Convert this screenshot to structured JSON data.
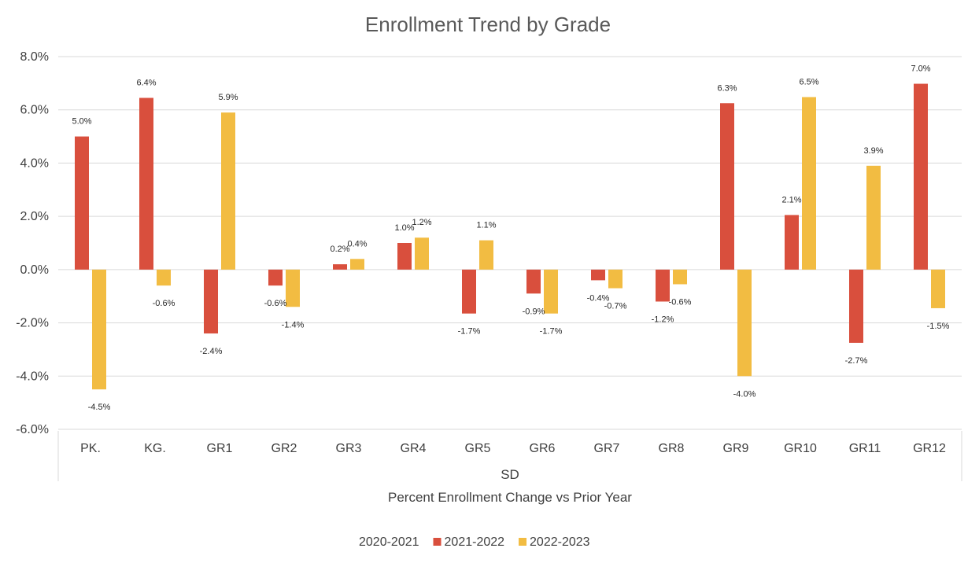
{
  "chart_data": {
    "type": "bar",
    "title": "Enrollment Trend by Grade",
    "categories": [
      "PK.",
      "KG.",
      "GR1",
      "GR2",
      "GR3",
      "GR4",
      "GR5",
      "GR6",
      "GR7",
      "GR8",
      "GR9",
      "GR10",
      "GR11",
      "GR12"
    ],
    "group_label": "SD",
    "xlabel": "Percent Enrollment Change vs Prior Year",
    "ylabel": "",
    "ylim": [
      -6.0,
      8.0
    ],
    "yticks": [
      "8.0%",
      "6.0%",
      "4.0%",
      "2.0%",
      "0.0%",
      "-2.0%",
      "-4.0%",
      "-6.0%"
    ],
    "grid": true,
    "legend_position": "bottom",
    "series": [
      {
        "name": "2020-2021",
        "color": "#4472C4",
        "values": [
          null,
          null,
          null,
          null,
          null,
          null,
          null,
          null,
          null,
          null,
          null,
          null,
          null,
          null
        ],
        "labels": []
      },
      {
        "name": "2021-2022",
        "color": "#D94F3D",
        "values": [
          5.0,
          6.45,
          -2.4,
          -0.6,
          0.2,
          1.0,
          -1.65,
          -0.9,
          -0.4,
          -1.2,
          6.25,
          2.05,
          -2.75,
          6.98
        ],
        "labels": [
          "5.0%",
          "6.4%",
          "-2.4%",
          "-0.6%",
          "0.2%",
          "1.0%",
          "-1.7%",
          "-0.9%",
          "-0.4%",
          "-1.2%",
          "6.3%",
          "2.1%",
          "-2.7%",
          "7.0%"
        ]
      },
      {
        "name": "2022-2023",
        "color": "#F2BC42",
        "values": [
          -4.5,
          -0.6,
          5.9,
          -1.4,
          0.4,
          1.2,
          1.1,
          -1.65,
          -0.7,
          -0.55,
          -4.0,
          6.48,
          3.9,
          -1.45
        ],
        "labels": [
          "-4.5%",
          "-0.6%",
          "5.9%",
          "-1.4%",
          "0.4%",
          "1.2%",
          "1.1%",
          "-1.7%",
          "-0.7%",
          "-0.6%",
          "-4.0%",
          "6.5%",
          "3.9%",
          "-1.5%"
        ]
      }
    ]
  }
}
